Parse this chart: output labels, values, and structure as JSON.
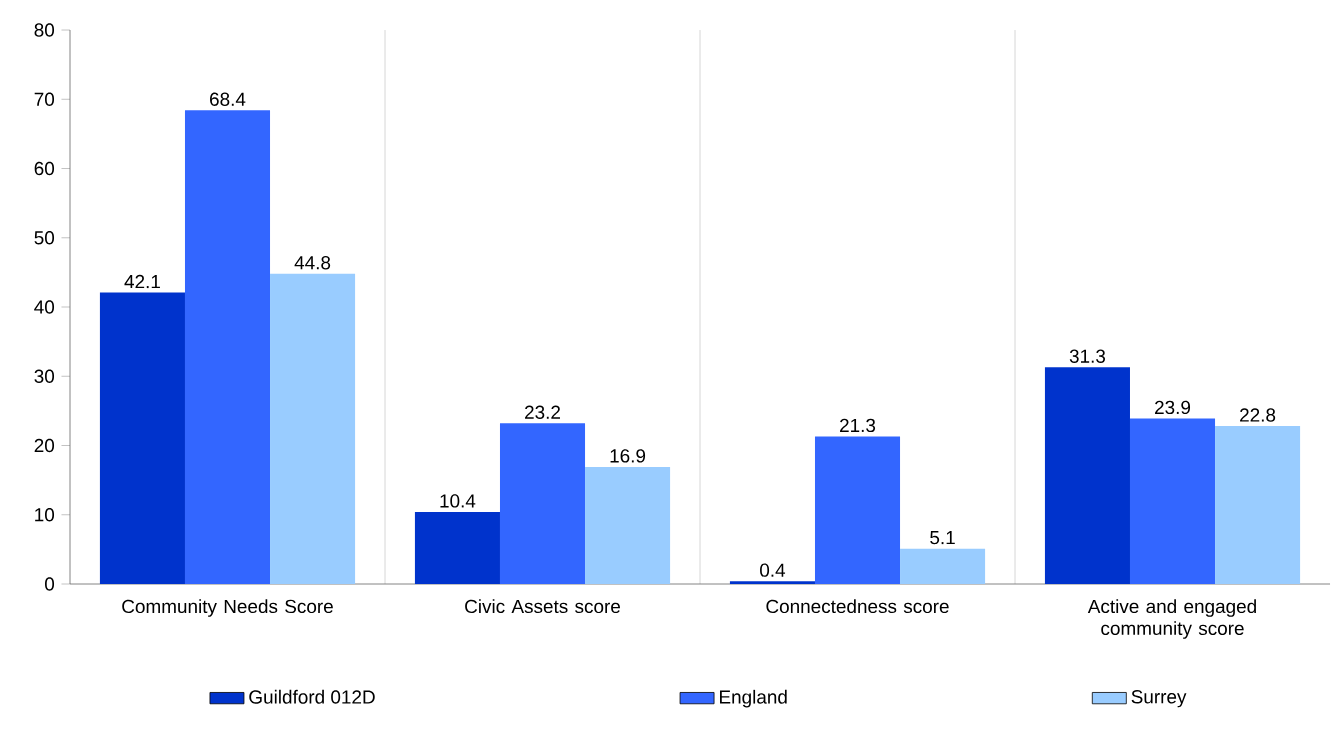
{
  "chart_data": {
    "type": "bar",
    "categories": [
      "Community Needs Score",
      "Civic Assets score",
      "Connectedness score",
      "Active and engaged community score"
    ],
    "series": [
      {
        "name": "Guildford 012D",
        "color": "#0033cc",
        "values": [
          42.1,
          10.4,
          0.4,
          31.3
        ]
      },
      {
        "name": "England",
        "color": "#3366ff",
        "values": [
          68.4,
          23.2,
          21.3,
          23.9
        ]
      },
      {
        "name": "Surrey",
        "color": "#99ccff",
        "values": [
          44.8,
          16.9,
          5.1,
          22.8
        ]
      }
    ],
    "ylim": [
      0,
      80
    ],
    "yticks": [
      0,
      10,
      20,
      30,
      40,
      50,
      60,
      70,
      80
    ],
    "grid": "x",
    "legend": "bottom",
    "data_labels": true
  }
}
